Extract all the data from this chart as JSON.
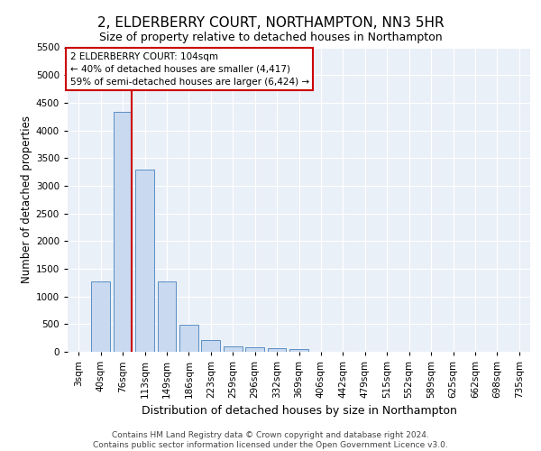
{
  "title": "2, ELDERBERRY COURT, NORTHAMPTON, NN3 5HR",
  "subtitle": "Size of property relative to detached houses in Northampton",
  "xlabel": "Distribution of detached houses by size in Northampton",
  "ylabel": "Number of detached properties",
  "categories": [
    "3sqm",
    "40sqm",
    "76sqm",
    "113sqm",
    "149sqm",
    "186sqm",
    "223sqm",
    "259sqm",
    "296sqm",
    "332sqm",
    "369sqm",
    "406sqm",
    "442sqm",
    "479sqm",
    "515sqm",
    "552sqm",
    "589sqm",
    "625sqm",
    "662sqm",
    "698sqm",
    "735sqm"
  ],
  "values": [
    0,
    1270,
    4330,
    3300,
    1270,
    490,
    210,
    90,
    80,
    60,
    55,
    0,
    0,
    0,
    0,
    0,
    0,
    0,
    0,
    0,
    0
  ],
  "bar_color": "#c8d9f0",
  "bar_edge_color": "#5a8fc3",
  "vline_color": "#cc0000",
  "annotation_text": "2 ELDERBERRY COURT: 104sqm\n← 40% of detached houses are smaller (4,417)\n59% of semi-detached houses are larger (6,424) →",
  "annotation_box_color": "#ffffff",
  "annotation_box_edgecolor": "#cc0000",
  "footer_text": "Contains HM Land Registry data © Crown copyright and database right 2024.\nContains public sector information licensed under the Open Government Licence v3.0.",
  "ylim": [
    0,
    5500
  ],
  "yticks": [
    0,
    500,
    1000,
    1500,
    2000,
    2500,
    3000,
    3500,
    4000,
    4500,
    5000,
    5500
  ],
  "title_fontsize": 11,
  "subtitle_fontsize": 9,
  "axis_bg_color": "#eaf0f8",
  "fig_bg_color": "#ffffff",
  "grid_color": "#ffffff",
  "tick_fontsize": 7.5,
  "ylabel_fontsize": 8.5,
  "xlabel_fontsize": 9,
  "footer_fontsize": 6.5,
  "annotation_fontsize": 7.5
}
